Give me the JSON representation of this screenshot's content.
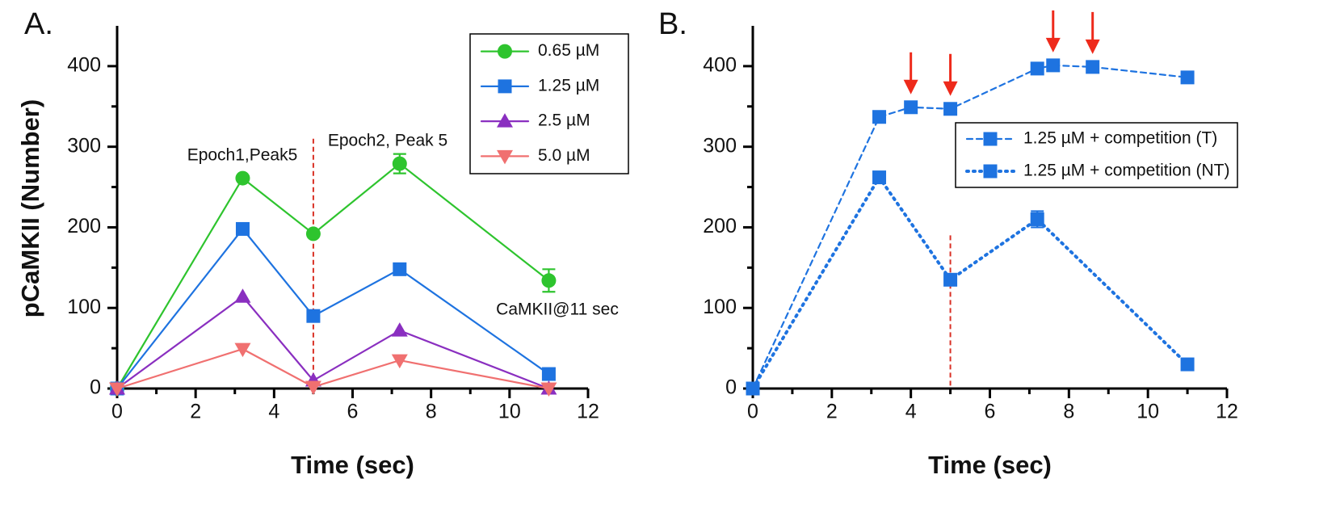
{
  "chart_data": [
    {
      "type": "line",
      "title": "A.",
      "xlabel": "Time (sec)",
      "ylabel": "pCaMKII (Number)",
      "xlim": [
        0,
        12
      ],
      "ylim": [
        0,
        450
      ],
      "xticks": [
        0,
        2,
        4,
        6,
        8,
        10,
        12
      ],
      "yticks": [
        0,
        100,
        200,
        300,
        400
      ],
      "legend": "upper right",
      "series": [
        {
          "name": "0.65 µM",
          "color": "#2ec42e",
          "marker": "circle",
          "dash": "solid",
          "x": [
            0,
            3.2,
            5,
            7.2,
            11
          ],
          "values": [
            0,
            261,
            192,
            279,
            134
          ],
          "errors": [
            null,
            null,
            null,
            12,
            14
          ]
        },
        {
          "name": "1.25 µM",
          "color": "#1e73e0",
          "marker": "square",
          "dash": "solid",
          "x": [
            0,
            3.2,
            5,
            7.2,
            11
          ],
          "values": [
            0,
            198,
            90,
            148,
            18
          ]
        },
        {
          "name": "2.5 µM",
          "color": "#8a2fc0",
          "marker": "triangle-up",
          "dash": "solid",
          "x": [
            0,
            3.2,
            5,
            7.2,
            11
          ],
          "values": [
            0,
            114,
            10,
            72,
            0
          ]
        },
        {
          "name": "5.0 µM",
          "color": "#f07070",
          "marker": "triangle-down",
          "dash": "solid",
          "x": [
            0,
            3.2,
            5,
            7.2,
            11
          ],
          "values": [
            0,
            49,
            2,
            35,
            0
          ]
        }
      ],
      "annotations": [
        "Epoch1,Peak5",
        "Epoch2, Peak 5",
        "CaMKII@11 sec"
      ],
      "vline": {
        "x": 5,
        "ymax": 310,
        "color": "#d93025"
      }
    },
    {
      "type": "line",
      "title": "B.",
      "xlabel": "Time (sec)",
      "xlim": [
        0,
        12
      ],
      "ylim": [
        0,
        450
      ],
      "xticks": [
        0,
        2,
        4,
        6,
        8,
        10,
        12
      ],
      "yticks": [
        0,
        100,
        200,
        300,
        400
      ],
      "legend": "right",
      "series": [
        {
          "name": "1.25 µM + competition (T)",
          "color": "#1e73e0",
          "marker": "square",
          "dash": "dashed",
          "x": [
            0,
            3.2,
            4,
            5,
            7.2,
            7.6,
            8.6,
            11
          ],
          "values": [
            0,
            337,
            349,
            347,
            397,
            401,
            399,
            386
          ]
        },
        {
          "name": "1.25 µM + competition (NT)",
          "color": "#1e73e0",
          "marker": "square",
          "dash": "dotted",
          "x": [
            0,
            3.2,
            5,
            7.2,
            11
          ],
          "values": [
            0,
            262,
            135,
            210,
            30
          ],
          "errors": [
            null,
            null,
            null,
            10,
            null
          ]
        }
      ],
      "arrows": [
        4,
        5,
        7.6,
        8.6
      ],
      "arrow_color": "#ee2a1b",
      "vline": {
        "x": 5,
        "ymax": 190,
        "color": "#d93025"
      }
    }
  ]
}
